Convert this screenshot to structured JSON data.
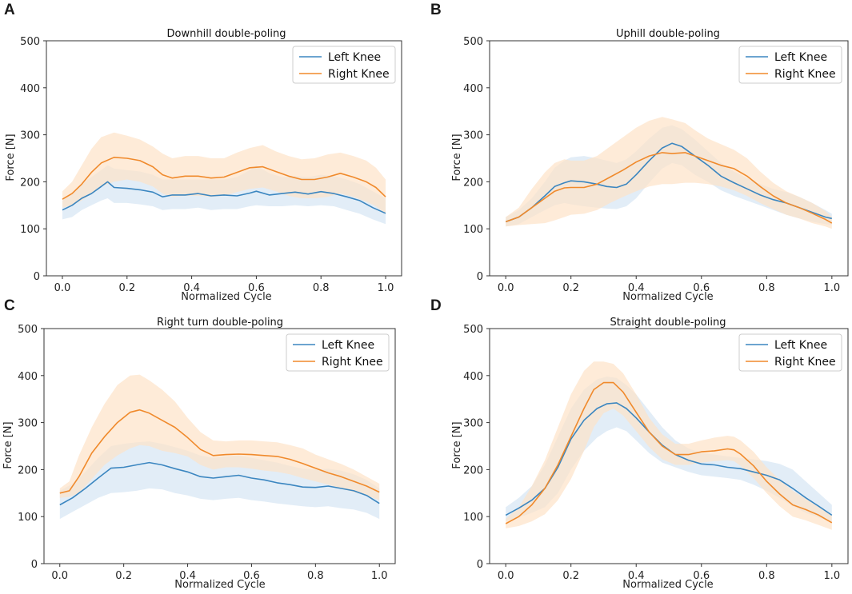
{
  "colors": {
    "left": "#3b86c0",
    "right": "#f08a2c",
    "left_band": "#d6e6f3",
    "right_band": "#fde2c8"
  },
  "chart_data": [
    {
      "letter": "A",
      "type": "line",
      "title": "Downhill double-poling",
      "xlabel": "Normalized Cycle",
      "ylabel": "Force [N]",
      "xlim": [
        0,
        1
      ],
      "ylim": [
        0,
        500
      ],
      "xticks": [
        "0.0",
        "0.2",
        "0.4",
        "0.6",
        "0.8",
        "1.0"
      ],
      "yticks": [
        "0",
        "100",
        "200",
        "300",
        "400",
        "500"
      ],
      "legend_position": "top-right",
      "series": [
        {
          "name": "Left Knee",
          "color_key": "left",
          "x": [
            0,
            0.03,
            0.06,
            0.09,
            0.12,
            0.14,
            0.16,
            0.2,
            0.24,
            0.28,
            0.31,
            0.34,
            0.38,
            0.42,
            0.46,
            0.5,
            0.54,
            0.58,
            0.6,
            0.64,
            0.68,
            0.72,
            0.76,
            0.8,
            0.84,
            0.88,
            0.92,
            0.96,
            1.0
          ],
          "y": [
            140,
            150,
            165,
            175,
            190,
            200,
            188,
            186,
            183,
            178,
            168,
            172,
            172,
            175,
            170,
            172,
            170,
            176,
            180,
            172,
            175,
            178,
            174,
            179,
            175,
            168,
            160,
            145,
            133
          ],
          "band_upper": [
            160,
            175,
            195,
            210,
            225,
            235,
            228,
            225,
            222,
            215,
            205,
            205,
            205,
            205,
            205,
            205,
            210,
            225,
            235,
            218,
            210,
            212,
            210,
            215,
            212,
            205,
            195,
            180,
            165
          ],
          "band_lower": [
            120,
            125,
            140,
            150,
            160,
            165,
            155,
            155,
            152,
            148,
            140,
            142,
            142,
            145,
            140,
            142,
            142,
            148,
            150,
            148,
            148,
            150,
            148,
            150,
            148,
            140,
            132,
            120,
            110
          ]
        },
        {
          "name": "Right Knee",
          "color_key": "right",
          "x": [
            0,
            0.03,
            0.06,
            0.09,
            0.12,
            0.16,
            0.2,
            0.24,
            0.28,
            0.31,
            0.34,
            0.38,
            0.42,
            0.46,
            0.5,
            0.54,
            0.58,
            0.62,
            0.66,
            0.7,
            0.74,
            0.78,
            0.82,
            0.86,
            0.9,
            0.94,
            0.97,
            1.0
          ],
          "y": [
            163,
            175,
            195,
            220,
            240,
            252,
            250,
            245,
            232,
            215,
            208,
            212,
            212,
            208,
            210,
            220,
            230,
            232,
            222,
            212,
            205,
            205,
            210,
            218,
            210,
            200,
            188,
            168
          ],
          "band_upper": [
            180,
            200,
            235,
            270,
            295,
            305,
            298,
            290,
            275,
            260,
            250,
            255,
            255,
            250,
            250,
            262,
            272,
            278,
            265,
            255,
            248,
            250,
            258,
            262,
            255,
            245,
            230,
            205
          ],
          "band_lower": [
            145,
            150,
            160,
            175,
            190,
            200,
            205,
            200,
            190,
            175,
            168,
            170,
            170,
            168,
            170,
            178,
            185,
            188,
            180,
            170,
            165,
            165,
            168,
            175,
            168,
            158,
            148,
            132
          ]
        }
      ]
    },
    {
      "letter": "B",
      "type": "line",
      "title": "Uphill double-poling",
      "xlabel": "Normalized Cycle",
      "ylabel": "Force [N]",
      "xlim": [
        0,
        1
      ],
      "ylim": [
        0,
        500
      ],
      "xticks": [
        "0.0",
        "0.2",
        "0.4",
        "0.6",
        "0.8",
        "1.0"
      ],
      "yticks": [
        "0",
        "100",
        "200",
        "300",
        "400",
        "500"
      ],
      "legend_position": "top-right",
      "series": [
        {
          "name": "Left Knee",
          "color_key": "left",
          "x": [
            0,
            0.04,
            0.08,
            0.12,
            0.15,
            0.18,
            0.2,
            0.24,
            0.28,
            0.31,
            0.34,
            0.37,
            0.4,
            0.44,
            0.48,
            0.51,
            0.54,
            0.58,
            0.62,
            0.66,
            0.7,
            0.74,
            0.78,
            0.82,
            0.86,
            0.9,
            0.94,
            0.98,
            1.0
          ],
          "y": [
            115,
            125,
            145,
            170,
            190,
            198,
            202,
            200,
            195,
            190,
            188,
            195,
            215,
            245,
            272,
            282,
            275,
            255,
            235,
            212,
            198,
            185,
            172,
            162,
            155,
            145,
            135,
            125,
            122
          ],
          "band_upper": [
            125,
            140,
            165,
            200,
            230,
            245,
            252,
            255,
            250,
            245,
            240,
            248,
            265,
            292,
            315,
            320,
            312,
            290,
            265,
            240,
            222,
            208,
            195,
            185,
            178,
            168,
            155,
            140,
            132
          ],
          "band_lower": [
            105,
            110,
            125,
            140,
            150,
            155,
            152,
            148,
            145,
            143,
            142,
            148,
            165,
            198,
            228,
            240,
            235,
            215,
            200,
            182,
            170,
            160,
            150,
            140,
            130,
            122,
            115,
            110,
            108
          ]
        },
        {
          "name": "Right Knee",
          "color_key": "right",
          "x": [
            0,
            0.04,
            0.08,
            0.12,
            0.15,
            0.18,
            0.2,
            0.24,
            0.28,
            0.32,
            0.36,
            0.4,
            0.44,
            0.48,
            0.51,
            0.55,
            0.58,
            0.62,
            0.66,
            0.7,
            0.74,
            0.78,
            0.82,
            0.86,
            0.9,
            0.94,
            0.98,
            1.0
          ],
          "y": [
            115,
            125,
            145,
            165,
            180,
            187,
            188,
            188,
            195,
            210,
            225,
            242,
            255,
            262,
            260,
            262,
            255,
            245,
            235,
            228,
            212,
            190,
            170,
            155,
            145,
            133,
            120,
            112
          ],
          "band_upper": [
            125,
            145,
            185,
            220,
            240,
            248,
            245,
            245,
            255,
            275,
            295,
            315,
            330,
            338,
            333,
            325,
            310,
            292,
            280,
            268,
            250,
            222,
            198,
            180,
            168,
            155,
            138,
            125
          ],
          "band_lower": [
            105,
            108,
            110,
            112,
            118,
            125,
            130,
            132,
            140,
            155,
            168,
            180,
            190,
            195,
            195,
            198,
            198,
            195,
            190,
            182,
            170,
            155,
            142,
            130,
            122,
            112,
            105,
            100
          ]
        }
      ]
    },
    {
      "letter": "C",
      "type": "line",
      "title": "Right turn double-poling",
      "xlabel": "Normalized Cycle",
      "ylabel": "Force [N]",
      "xlim": [
        0,
        1
      ],
      "ylim": [
        0,
        500
      ],
      "xticks": [
        "0.0",
        "0.2",
        "0.4",
        "0.6",
        "0.8",
        "1.0"
      ],
      "yticks": [
        "0",
        "100",
        "200",
        "300",
        "400",
        "500"
      ],
      "legend_position": "top-right",
      "series": [
        {
          "name": "Left Knee",
          "color_key": "left",
          "x": [
            0,
            0.04,
            0.08,
            0.12,
            0.16,
            0.2,
            0.24,
            0.28,
            0.32,
            0.36,
            0.4,
            0.44,
            0.48,
            0.52,
            0.56,
            0.6,
            0.64,
            0.68,
            0.72,
            0.76,
            0.8,
            0.84,
            0.88,
            0.92,
            0.96,
            1.0
          ],
          "y": [
            125,
            140,
            160,
            182,
            203,
            205,
            210,
            215,
            210,
            202,
            195,
            185,
            182,
            185,
            188,
            182,
            178,
            172,
            168,
            163,
            162,
            165,
            160,
            155,
            145,
            128
          ],
          "band_upper": [
            155,
            170,
            195,
            225,
            250,
            255,
            258,
            260,
            255,
            248,
            240,
            230,
            225,
            228,
            230,
            225,
            220,
            215,
            208,
            202,
            200,
            202,
            198,
            190,
            178,
            160
          ],
          "band_lower": [
            95,
            110,
            125,
            140,
            150,
            152,
            155,
            160,
            158,
            150,
            145,
            138,
            135,
            138,
            140,
            135,
            132,
            128,
            125,
            122,
            120,
            122,
            118,
            115,
            108,
            95
          ]
        },
        {
          "name": "Right Knee",
          "color_key": "right",
          "x": [
            0,
            0.03,
            0.06,
            0.1,
            0.14,
            0.18,
            0.22,
            0.25,
            0.28,
            0.32,
            0.36,
            0.4,
            0.44,
            0.48,
            0.52,
            0.56,
            0.6,
            0.64,
            0.68,
            0.72,
            0.76,
            0.8,
            0.84,
            0.88,
            0.92,
            0.96,
            1.0
          ],
          "y": [
            150,
            155,
            185,
            235,
            270,
            300,
            322,
            327,
            320,
            305,
            290,
            268,
            243,
            230,
            232,
            233,
            232,
            230,
            228,
            222,
            213,
            203,
            193,
            185,
            175,
            165,
            152
          ],
          "band_upper": [
            160,
            175,
            230,
            290,
            340,
            380,
            400,
            402,
            390,
            370,
            345,
            310,
            280,
            262,
            260,
            262,
            262,
            260,
            258,
            252,
            245,
            232,
            222,
            212,
            200,
            185,
            170
          ],
          "band_lower": [
            140,
            142,
            150,
            180,
            210,
            230,
            245,
            252,
            250,
            240,
            235,
            228,
            210,
            200,
            205,
            205,
            202,
            198,
            195,
            190,
            182,
            175,
            168,
            160,
            152,
            145,
            135
          ]
        }
      ]
    },
    {
      "letter": "D",
      "type": "line",
      "title": "Straight double-poling",
      "xlabel": "Normalized Cycle",
      "ylabel": "Force [N]",
      "xlim": [
        0,
        1
      ],
      "ylim": [
        0,
        500
      ],
      "xticks": [
        "0.0",
        "0.2",
        "0.4",
        "0.6",
        "0.8",
        "1.0"
      ],
      "yticks": [
        "0",
        "100",
        "200",
        "300",
        "400",
        "500"
      ],
      "legend_position": "top-right",
      "series": [
        {
          "name": "Left Knee",
          "color_key": "left",
          "x": [
            0,
            0.04,
            0.08,
            0.12,
            0.16,
            0.2,
            0.24,
            0.28,
            0.31,
            0.34,
            0.37,
            0.4,
            0.44,
            0.48,
            0.52,
            0.56,
            0.6,
            0.64,
            0.68,
            0.72,
            0.76,
            0.8,
            0.84,
            0.88,
            0.92,
            0.96,
            1.0
          ],
          "y": [
            103,
            118,
            135,
            160,
            205,
            265,
            305,
            330,
            340,
            342,
            330,
            310,
            280,
            252,
            232,
            220,
            212,
            210,
            205,
            202,
            195,
            188,
            178,
            160,
            140,
            122,
            103
          ],
          "band_upper": [
            120,
            140,
            165,
            210,
            270,
            330,
            370,
            392,
            398,
            395,
            380,
            360,
            325,
            290,
            262,
            245,
            235,
            232,
            228,
            225,
            222,
            218,
            212,
            200,
            175,
            150,
            125
          ],
          "band_lower": [
            90,
            98,
            108,
            120,
            150,
            200,
            240,
            268,
            282,
            290,
            282,
            262,
            235,
            215,
            205,
            195,
            188,
            185,
            182,
            178,
            168,
            155,
            140,
            122,
            108,
            98,
            88
          ]
        },
        {
          "name": "Right Knee",
          "color_key": "right",
          "x": [
            0,
            0.04,
            0.08,
            0.12,
            0.16,
            0.2,
            0.24,
            0.27,
            0.3,
            0.33,
            0.36,
            0.4,
            0.44,
            0.48,
            0.52,
            0.56,
            0.6,
            0.64,
            0.68,
            0.7,
            0.72,
            0.76,
            0.8,
            0.84,
            0.88,
            0.92,
            0.96,
            1.0
          ],
          "y": [
            85,
            100,
            125,
            160,
            210,
            270,
            330,
            370,
            385,
            385,
            365,
            322,
            280,
            250,
            232,
            232,
            238,
            240,
            244,
            242,
            233,
            208,
            175,
            148,
            125,
            115,
            103,
            87
          ],
          "band_upper": [
            95,
            120,
            165,
            220,
            290,
            360,
            410,
            430,
            430,
            425,
            405,
            360,
            310,
            275,
            255,
            255,
            262,
            268,
            272,
            270,
            262,
            238,
            205,
            178,
            155,
            138,
            120,
            102
          ],
          "band_lower": [
            75,
            80,
            90,
            105,
            135,
            180,
            240,
            290,
            320,
            330,
            315,
            282,
            248,
            222,
            210,
            210,
            215,
            218,
            220,
            218,
            208,
            182,
            150,
            122,
            100,
            92,
            82,
            72
          ]
        }
      ]
    }
  ]
}
